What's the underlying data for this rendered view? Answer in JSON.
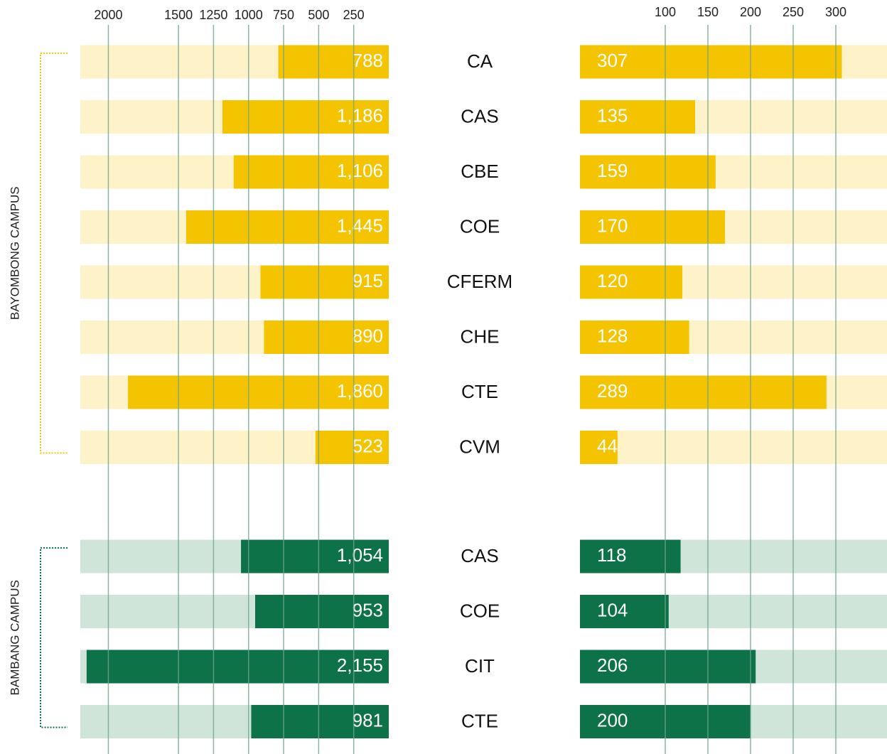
{
  "chart_data": [
    {
      "type": "bar",
      "orientation": "horizontal",
      "direction": "reversed",
      "xlim": [
        0,
        2200
      ],
      "xticks": [
        2000,
        1500,
        1250,
        1000,
        750,
        500,
        250
      ],
      "grid": true,
      "groups": [
        {
          "name": "BAYOMBONG CAMPUS",
          "color": "#f5c400",
          "track_color": "#fdf2c8",
          "categories": [
            "CA",
            "CAS",
            "CBE",
            "COE",
            "CFERM",
            "CHE",
            "CTE",
            "CVM"
          ],
          "values": [
            788,
            1186,
            1106,
            1445,
            915,
            890,
            1860,
            523
          ],
          "value_labels": [
            "788",
            "1,186",
            "1,106",
            "1,445",
            "915",
            "890",
            "1,860",
            "523"
          ]
        },
        {
          "name": "BAMBANG CAMPUS",
          "color": "#0d7248",
          "track_color": "#cfe5da",
          "categories": [
            "CAS",
            "COE",
            "CIT",
            "CTE"
          ],
          "values": [
            1054,
            953,
            2155,
            981
          ],
          "value_labels": [
            "1,054",
            "953",
            "2,155",
            "981"
          ]
        }
      ]
    },
    {
      "type": "bar",
      "orientation": "horizontal",
      "xlim": [
        0,
        360
      ],
      "xticks": [
        100,
        150,
        200,
        250,
        300
      ],
      "grid": true,
      "groups": [
        {
          "color": "#f5c400",
          "track_color": "#fdf2c8",
          "values": [
            307,
            135,
            159,
            170,
            120,
            128,
            289,
            44
          ]
        },
        {
          "color": "#0d7248",
          "track_color": "#cfe5da",
          "values": [
            118,
            104,
            206,
            200
          ]
        }
      ]
    }
  ]
}
